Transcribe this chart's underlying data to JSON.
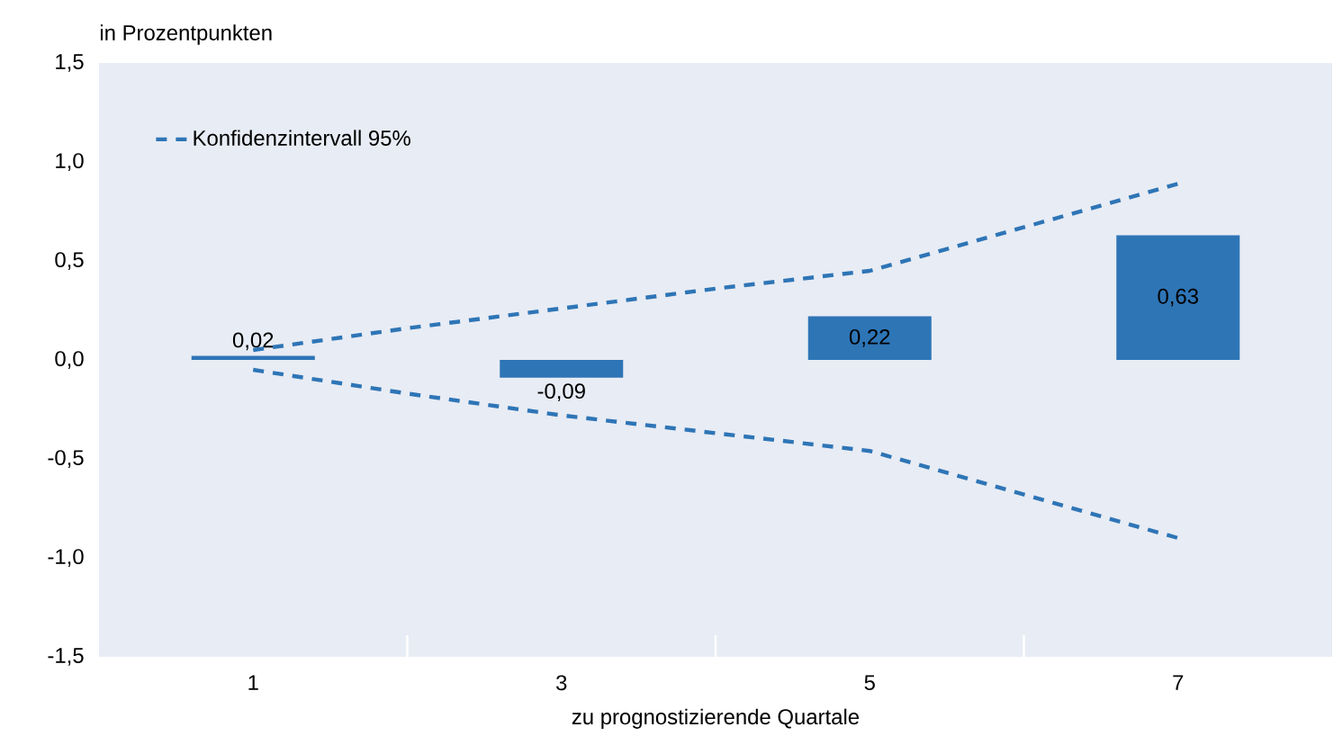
{
  "chart_data": {
    "type": "bar",
    "ylabel": "in Prozentpunkten",
    "xlabel": "zu prognostizierende Quartale",
    "x": [
      1,
      3,
      5,
      7
    ],
    "xlim": [
      0,
      8
    ],
    "xticks": [
      1,
      {
        "value": 2,
        "label": null
      },
      3,
      {
        "value": 4,
        "label": null
      },
      5,
      {
        "value": 6,
        "label": null
      },
      7
    ],
    "ylim": [
      -1.5,
      1.5
    ],
    "yticks": [
      {
        "value": -1.5,
        "label": "-1,5"
      },
      {
        "value": -1,
        "label": "-1,0"
      },
      {
        "value": -0.5,
        "label": "-0,5"
      },
      {
        "value": 0,
        "label": "0,0"
      },
      {
        "value": 0.5,
        "label": "0,5"
      },
      {
        "value": 1,
        "label": "1,0"
      },
      {
        "value": 1.5,
        "label": "1,5"
      }
    ],
    "legend": "top left",
    "series": [
      {
        "color": "#2e75b6",
        "values": [
          0.02,
          -0.09,
          0.22,
          0.63
        ],
        "value_labels": [
          "0,02",
          "-0,09",
          "0,22",
          "0,63"
        ]
      },
      {
        "type": "line",
        "name": "Konfidenzintervall 95%",
        "color": "#2e75b6",
        "line_style": "dashed",
        "x": [
          1,
          2,
          3,
          4,
          5,
          6,
          7
        ],
        "values": [
          0.05,
          0.16,
          0.26,
          0.36,
          0.45,
          0.67,
          0.89
        ]
      },
      {
        "type": "line",
        "color": "#2e75b6",
        "line_style": "dashed",
        "x": [
          1,
          2,
          3,
          4,
          5,
          6,
          7
        ],
        "values": [
          -0.05,
          -0.17,
          -0.28,
          -0.37,
          -0.46,
          -0.68,
          -0.9
        ]
      }
    ]
  }
}
